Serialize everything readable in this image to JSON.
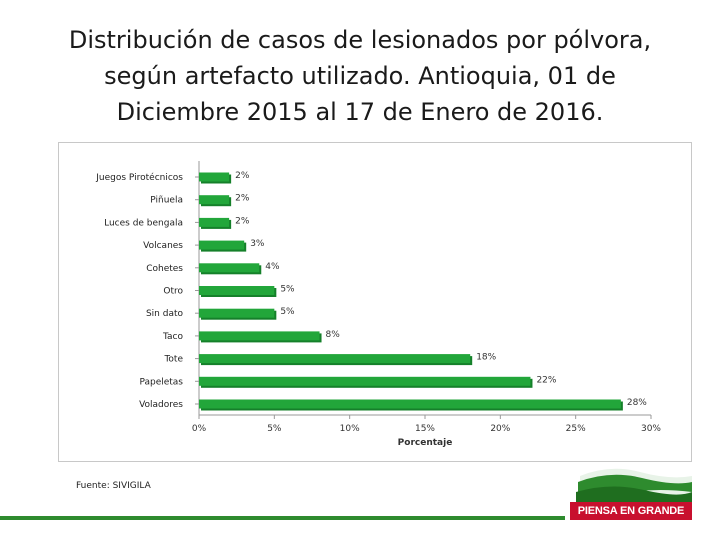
{
  "title": {
    "line1": "Distribución de casos de lesionados por pólvora,",
    "line2": "según artefacto utilizado. Antioquia, 01 de",
    "line3": "Diciembre 2015 al 17 de Enero de 2016."
  },
  "source": "Fuente: SIVIGILA",
  "logo_text": "PIENSA EN GRANDE",
  "colors": {
    "bar": "#22a63a",
    "bar_dark": "#15802a",
    "accent_green": "#2e8b2e",
    "logo_red": "#c8102e"
  },
  "chart_data": {
    "type": "bar",
    "orientation": "horizontal",
    "categories": [
      "Juegos Pirotécnicos",
      "Piñuela",
      "Luces de bengala",
      "Volcanes",
      "Cohetes",
      "Otro",
      "Sin dato",
      "Taco",
      "Tote",
      "Papeletas",
      "Voladores"
    ],
    "values": [
      2,
      2,
      2,
      3,
      4,
      5,
      5,
      8,
      18,
      22,
      28
    ],
    "value_labels": [
      "2%",
      "2%",
      "2%",
      "3%",
      "4%",
      "5%",
      "5%",
      "8%",
      "18%",
      "22%",
      "28%"
    ],
    "xticks": [
      "0%",
      "5%",
      "10%",
      "15%",
      "20%",
      "25%",
      "30%"
    ],
    "xlim": [
      0,
      30
    ],
    "xlabel": "Porcentaje",
    "ylabel": "",
    "grid": false,
    "legend": "none"
  }
}
